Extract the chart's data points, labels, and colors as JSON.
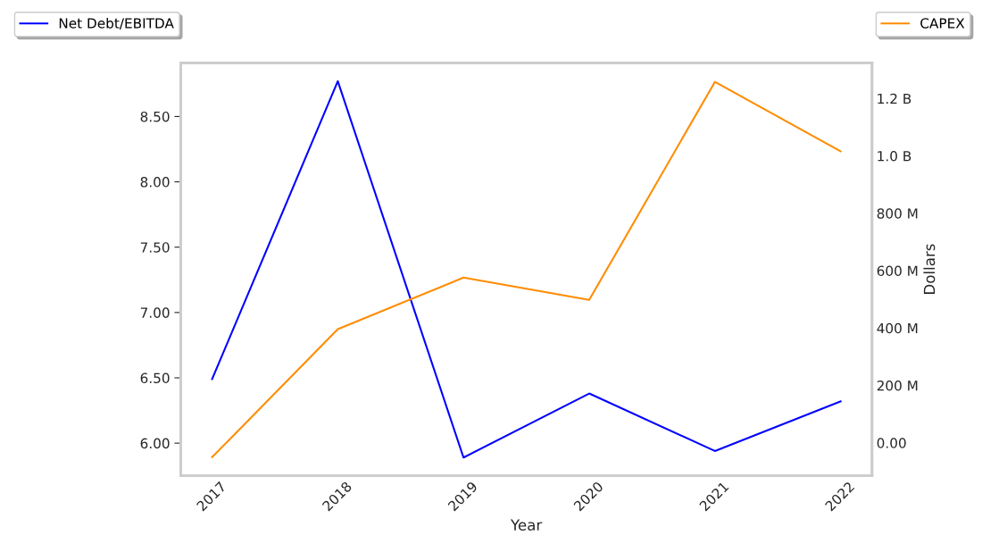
{
  "chart_data": {
    "type": "line",
    "xlabel": "Year",
    "y2label": "Dollars",
    "categories": [
      "2017",
      "2018",
      "2019",
      "2020",
      "2021",
      "2022"
    ],
    "series": [
      {
        "name": "Net Debt/EBITDA",
        "color": "#0000ff",
        "values": [
          6.49,
          8.77,
          5.89,
          6.38,
          5.94,
          6.32
        ]
      },
      {
        "name": "CAPEX",
        "color": "#ff8c00",
        "axis": "y2",
        "values": [
          -50000000,
          396000000,
          576000000,
          498000000,
          1258000000,
          1016000000
        ]
      }
    ],
    "ylim": [
      5.75,
      8.91
    ],
    "yticks": [
      {
        "value": 6,
        "label": "6.00"
      },
      {
        "value": 6.5,
        "label": "6.50"
      },
      {
        "value": 7,
        "label": "7.00"
      },
      {
        "value": 7.5,
        "label": "7.50"
      },
      {
        "value": 8,
        "label": "8.00"
      },
      {
        "value": 8.5,
        "label": "8.50"
      }
    ],
    "y2lim": [
      -115000000,
      1324000000
    ],
    "y2ticks": [
      {
        "value": 0,
        "label": "0.00"
      },
      {
        "value": 200000000,
        "label": "200 M"
      },
      {
        "value": 400000000,
        "label": "400 M"
      },
      {
        "value": 600000000,
        "label": "600 M"
      },
      {
        "value": 800000000,
        "label": "800 M"
      },
      {
        "value": 1000000000,
        "label": "1.0 B"
      },
      {
        "value": 1200000000,
        "label": "1.2 B"
      }
    ],
    "grid": false,
    "legend": "top",
    "line_style": "solid",
    "marker": "none"
  }
}
